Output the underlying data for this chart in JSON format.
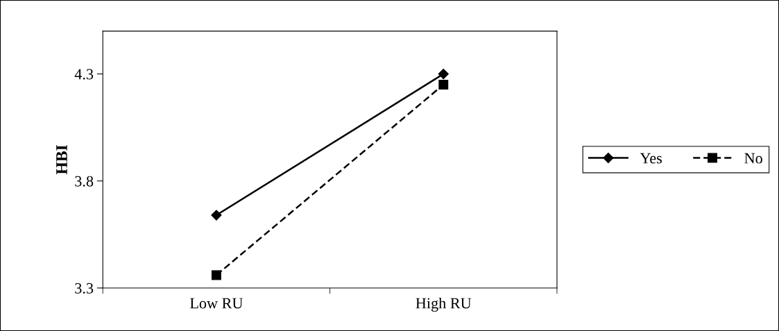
{
  "chart_data": {
    "type": "line",
    "ylabel": "HBI",
    "categories": [
      "Low RU",
      "High RU"
    ],
    "series": [
      {
        "name": "Yes",
        "color": "#000000",
        "values": [
          3.64,
          4.3
        ],
        "marker": "diamond",
        "line_style": "solid"
      },
      {
        "name": "No",
        "color": "#000000",
        "values": [
          3.36,
          4.25
        ],
        "marker": "square",
        "line_style": "dashed"
      }
    ],
    "ylim": [
      3.3,
      4.5
    ],
    "yticks": [
      3.3,
      3.8,
      4.3
    ],
    "grid": false,
    "legend": "right"
  }
}
